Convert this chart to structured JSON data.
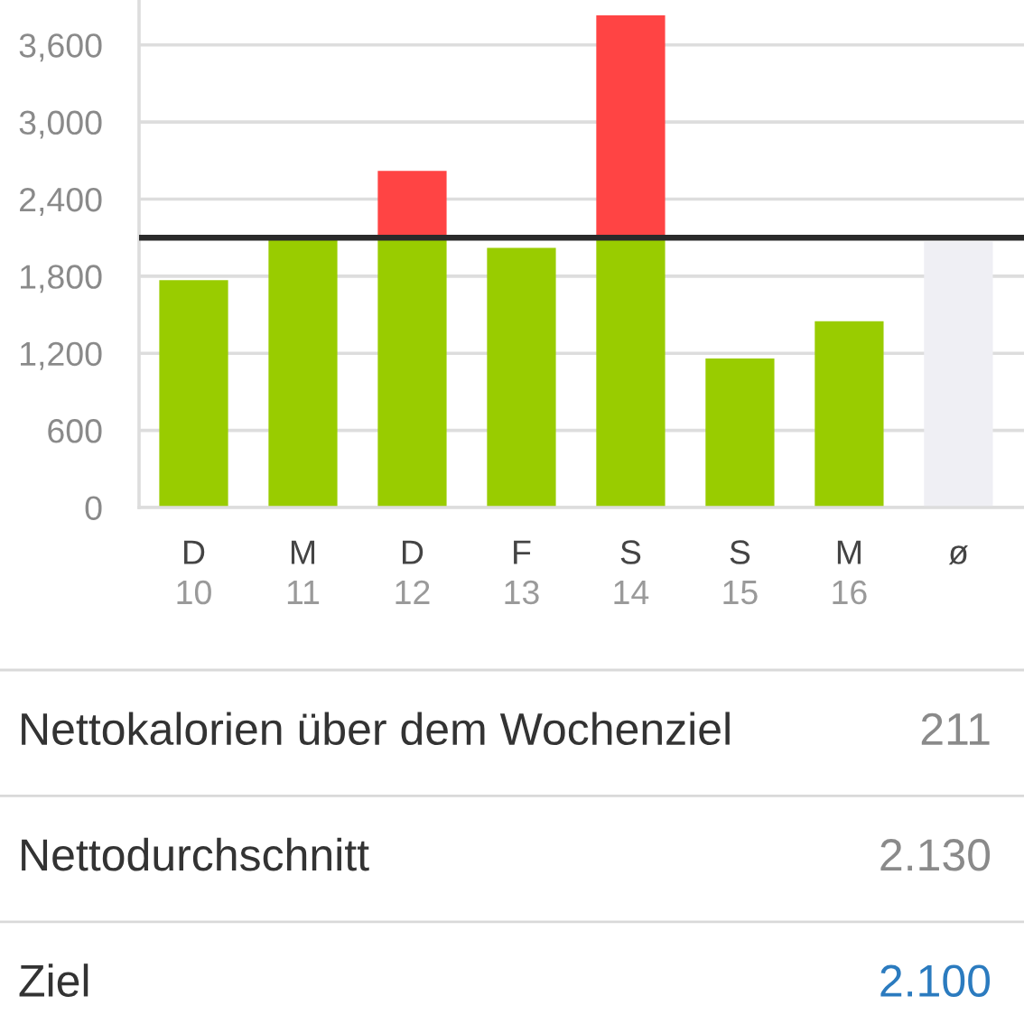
{
  "chart_data": {
    "type": "bar",
    "stacked": true,
    "categories": [
      "D\n10",
      "M\n11",
      "D\n12",
      "F\n13",
      "S\n14",
      "S\n15",
      "M\n16",
      "ø"
    ],
    "series": [
      {
        "colors": [
          "#99cc00",
          "#99cc00",
          "#99cc00",
          "#99cc00",
          "#99cc00",
          "#99cc00",
          "#99cc00",
          "#efeff4"
        ],
        "values": [
          1770,
          2090,
          2100,
          2020,
          2100,
          1160,
          1450,
          2070
        ]
      },
      {
        "color": "#ff4444",
        "values": [
          null,
          null,
          520,
          null,
          1730,
          null,
          null,
          null
        ]
      }
    ],
    "ylim": [
      0,
      3950
    ],
    "yticks": [
      0,
      600,
      {
        "value": 1200,
        "label": "1,200"
      },
      {
        "value": 1800,
        "label": "1,800"
      },
      {
        "value": 2400,
        "label": "2,400"
      },
      {
        "value": 3000,
        "label": "3,000"
      },
      {
        "value": 3600,
        "label": "3,600"
      }
    ],
    "grid": "y",
    "ref_lines": [
      {
        "axis": "y",
        "value": 2100,
        "color": "#2a2a2a"
      }
    ],
    "annotations": [
      "Nettokalorien über dem Wochenziel",
      "211",
      "Nettodurchschnitt",
      "2.130",
      "Ziel",
      "2.100"
    ]
  }
}
